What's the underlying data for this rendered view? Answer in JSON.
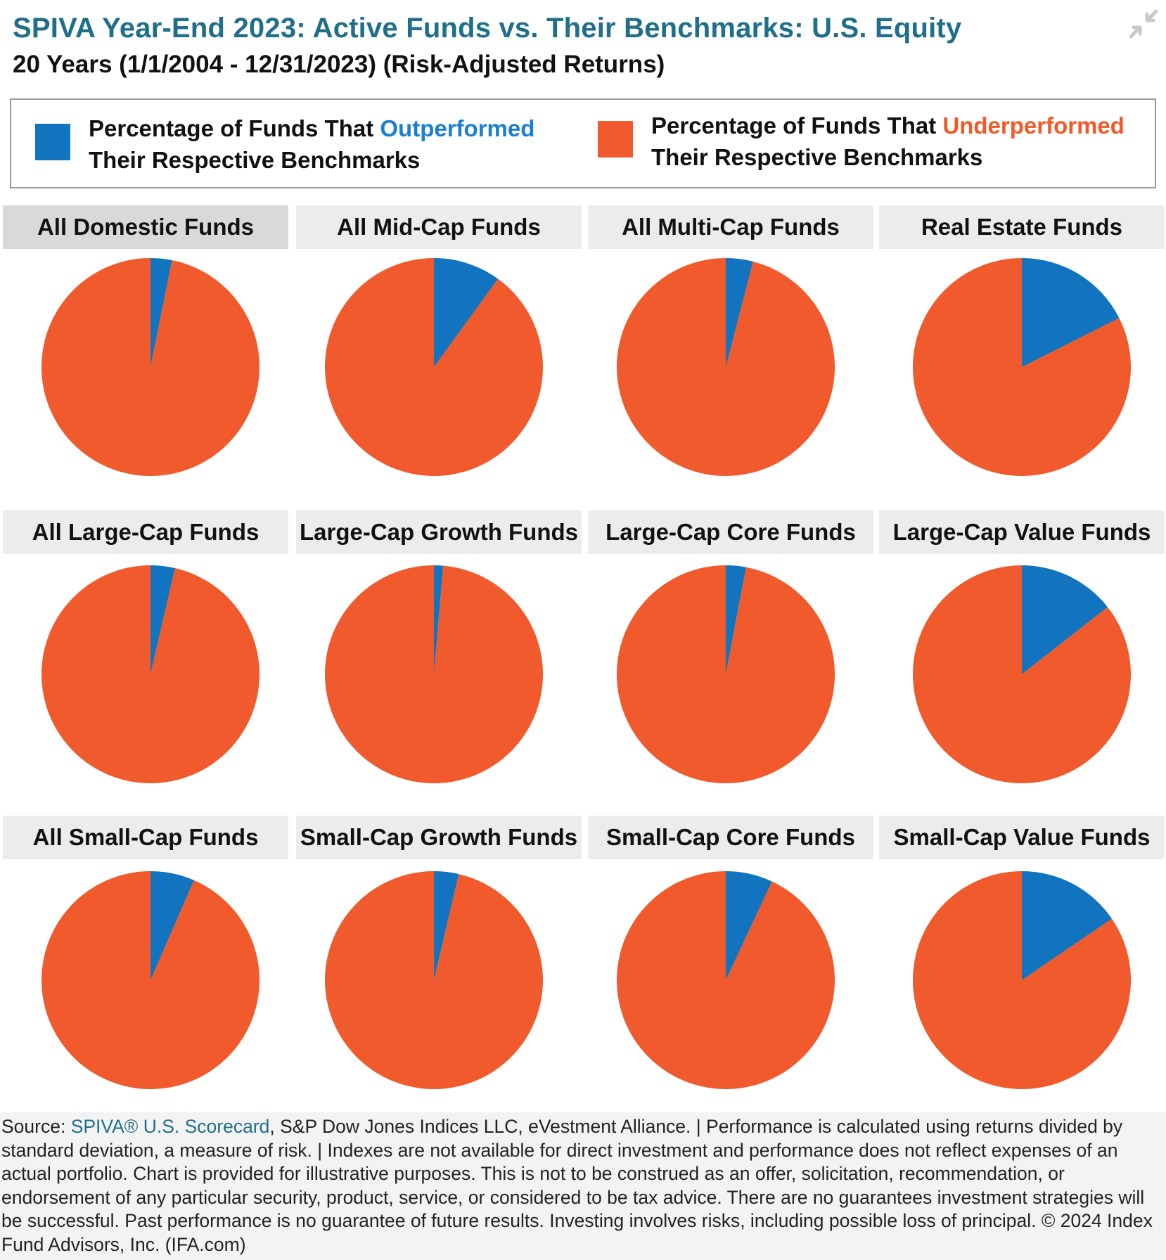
{
  "header": {
    "title": "SPIVA Year-End 2023: Active Funds vs. Their Benchmarks: U.S. Equity",
    "subtitle": "20 Years (1/1/2004 - 12/31/2023) (Risk-Adjusted Returns)"
  },
  "legend": {
    "outperformed": {
      "prefix": "Percentage of Funds That ",
      "highlight": "Outperformed",
      "suffix": "Their Respective Benchmarks",
      "color": "#1a73bd"
    },
    "underperformed": {
      "prefix": "Percentage of Funds That ",
      "highlight": "Underperformed",
      "suffix": "Their Respective Benchmarks",
      "color": "#f05a28"
    }
  },
  "icons": {
    "collapse": "collapse-arrows-icon"
  },
  "colors": {
    "outperformed": "#1273be",
    "underperformed": "#f05a2c",
    "header_bg": "#ececec",
    "header_active_bg": "#d9d9d9"
  },
  "chart_data": {
    "type": "pie",
    "series": [
      {
        "name": "Outperformed"
      },
      {
        "name": "Underperformed"
      }
    ],
    "panels": [
      {
        "title": "All Domestic Funds",
        "label": "96.83%",
        "underperformed": 96.83,
        "outperformed": 3.17
      },
      {
        "title": "All Mid-Cap Funds",
        "label": "90.00%",
        "underperformed": 90.0,
        "outperformed": 10.0
      },
      {
        "title": "All Multi-Cap Funds",
        "label": "95.96%",
        "underperformed": 95.96,
        "outperformed": 4.04
      },
      {
        "title": "Real Estate Funds",
        "label": "82.43%",
        "underperformed": 82.43,
        "outperformed": 17.57
      },
      {
        "title": "All Large-Cap Funds",
        "label": "96.39%",
        "underperformed": 96.39,
        "outperformed": 3.61
      },
      {
        "title": "Large-Cap Growth Funds",
        "label": "98.64%",
        "underperformed": 98.64,
        "outperformed": 1.36
      },
      {
        "title": "Large-Cap Core Funds",
        "label": "97.02%",
        "underperformed": 97.02,
        "outperformed": 2.98
      },
      {
        "title": "Large-Cap Value Funds",
        "label": "85.58%",
        "underperformed": 85.58,
        "outperformed": 14.42
      },
      {
        "title": "All Small-Cap Funds",
        "label": "93.46%",
        "underperformed": 93.46,
        "outperformed": 6.54
      },
      {
        "title": "Small-Cap Growth Funds",
        "label": "96.34%",
        "underperformed": 96.34,
        "outperformed": 3.66
      },
      {
        "title": "Small-Cap Core Funds",
        "label": "93.03%",
        "underperformed": 93.03,
        "outperformed": 6.97
      },
      {
        "title": "Small-Cap Value Funds",
        "label": "84.54%",
        "underperformed": 84.54,
        "outperformed": 15.46
      }
    ]
  },
  "footer": {
    "source_prefix": "Source: ",
    "source_link": "SPIVA® U.S. Scorecard",
    "source_text": ", S&P Dow Jones Indices LLC, eVestment Alliance. | Performance is calculated using returns divided by standard deviation, a measure of risk. | Indexes are not available for direct investment and performance does not reflect expenses of an actual portfolio. Chart is provided for illustrative purposes. This is not to be construed as an offer, solicitation, recommendation, or endorsement of any particular security, product, service, or considered to be tax advice. There are no guarantees investment strategies will be successful. Past performance is no guarantee of future results. Investing involves risks, including possible loss of principal. © 2024 Index Fund Advisors, Inc. (IFA.com)"
  }
}
